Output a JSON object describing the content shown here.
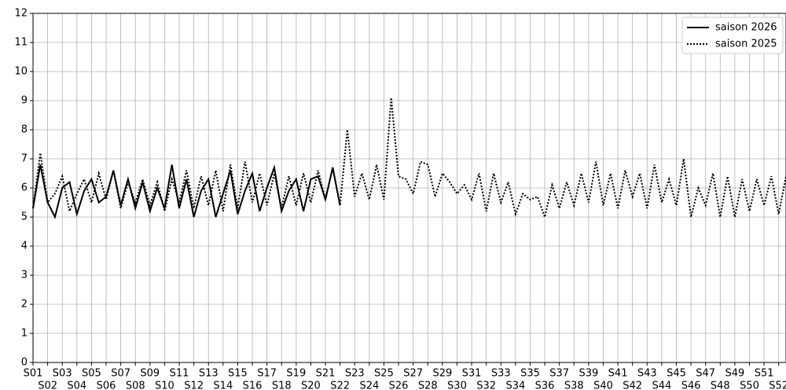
{
  "chart_data": {
    "type": "line",
    "xlim": [
      0,
      51.5
    ],
    "ylim": [
      0,
      12
    ],
    "yticks": [
      0,
      1,
      2,
      3,
      4,
      5,
      6,
      7,
      8,
      9,
      10,
      11,
      12
    ],
    "xticks": [
      {
        "value": 0,
        "label": "S01"
      },
      {
        "value": 1,
        "label": "S02"
      },
      {
        "value": 2,
        "label": "S03"
      },
      {
        "value": 3,
        "label": "S04"
      },
      {
        "value": 4,
        "label": "S05"
      },
      {
        "value": 5,
        "label": "S06"
      },
      {
        "value": 6,
        "label": "S07"
      },
      {
        "value": 7,
        "label": "S08"
      },
      {
        "value": 8,
        "label": "S09"
      },
      {
        "value": 9,
        "label": "S10"
      },
      {
        "value": 10,
        "label": "S11"
      },
      {
        "value": 11,
        "label": "S12"
      },
      {
        "value": 12,
        "label": "S13"
      },
      {
        "value": 13,
        "label": "S14"
      },
      {
        "value": 14,
        "label": "S15"
      },
      {
        "value": 15,
        "label": "S16"
      },
      {
        "value": 16,
        "label": "S17"
      },
      {
        "value": 17,
        "label": "S18"
      },
      {
        "value": 18,
        "label": "S19"
      },
      {
        "value": 19,
        "label": "S20"
      },
      {
        "value": 20,
        "label": "S21"
      },
      {
        "value": 21,
        "label": "S22"
      },
      {
        "value": 22,
        "label": "S23"
      },
      {
        "value": 23,
        "label": "S24"
      },
      {
        "value": 24,
        "label": "S25"
      },
      {
        "value": 25,
        "label": "S26"
      },
      {
        "value": 26,
        "label": "S27"
      },
      {
        "value": 27,
        "label": "S28"
      },
      {
        "value": 28,
        "label": "S29"
      },
      {
        "value": 29,
        "label": "S30"
      },
      {
        "value": 30,
        "label": "S31"
      },
      {
        "value": 31,
        "label": "S32"
      },
      {
        "value": 32,
        "label": "S33"
      },
      {
        "value": 33,
        "label": "S34"
      },
      {
        "value": 34,
        "label": "S35"
      },
      {
        "value": 35,
        "label": "S36"
      },
      {
        "value": 36,
        "label": "S37"
      },
      {
        "value": 37,
        "label": "S38"
      },
      {
        "value": 38,
        "label": "S39"
      },
      {
        "value": 39,
        "label": "S40"
      },
      {
        "value": 40,
        "label": "S41"
      },
      {
        "value": 41,
        "label": "S42"
      },
      {
        "value": 42,
        "label": "S43"
      },
      {
        "value": 43,
        "label": "S44"
      },
      {
        "value": 44,
        "label": "S45"
      },
      {
        "value": 45,
        "label": "S46"
      },
      {
        "value": 46,
        "label": "S47"
      },
      {
        "value": 47,
        "label": "S48"
      },
      {
        "value": 48,
        "label": "S49"
      },
      {
        "value": 49,
        "label": "S50"
      },
      {
        "value": 50,
        "label": "S51"
      },
      {
        "value": 51,
        "label": "S52"
      }
    ],
    "grid": true,
    "legend": "upper right",
    "series": [
      {
        "name": "saison 2026",
        "color": "#000000",
        "style": "solid",
        "x": [
          0,
          0.5,
          1,
          1.5,
          2,
          2.5,
          3,
          3.5,
          4,
          4.5,
          5,
          5.5,
          6,
          6.5,
          7,
          7.5,
          8,
          8.5,
          9,
          9.5,
          10,
          10.5,
          11,
          11.5,
          12,
          12.5,
          13,
          13.5,
          14,
          14.5,
          15,
          15.5,
          16,
          16.5,
          17,
          17.5,
          18,
          18.5,
          19,
          19.5,
          20,
          20.5,
          21
        ],
        "values": [
          5.3,
          6.8,
          5.5,
          5.0,
          6.0,
          6.2,
          5.1,
          5.9,
          6.3,
          5.5,
          5.7,
          6.6,
          5.4,
          6.3,
          5.3,
          6.2,
          5.2,
          6.0,
          5.3,
          6.8,
          5.3,
          6.3,
          5.0,
          5.9,
          6.3,
          5.0,
          5.8,
          6.6,
          5.1,
          5.9,
          6.5,
          5.2,
          6.0,
          6.7,
          5.2,
          5.9,
          6.3,
          5.2,
          6.3,
          6.4,
          5.6,
          6.7,
          5.4
        ]
      },
      {
        "name": "saison 2025",
        "color": "#000000",
        "style": "dotted",
        "x": [
          0,
          0.5,
          1,
          1.5,
          2,
          2.5,
          3,
          3.5,
          4,
          4.5,
          5,
          5.5,
          6,
          6.5,
          7,
          7.5,
          8,
          8.5,
          9,
          9.5,
          10,
          10.5,
          11,
          11.5,
          12,
          12.5,
          13,
          13.5,
          14,
          14.5,
          15,
          15.5,
          16,
          16.5,
          17,
          17.5,
          18,
          18.5,
          19,
          19.5,
          20,
          20.5,
          21,
          21.5,
          22,
          22.5,
          23,
          23.5,
          24,
          24.5,
          25,
          25.5,
          26,
          26.5,
          27,
          27.5,
          28,
          28.5,
          29,
          29.5,
          30,
          30.5,
          31,
          31.5,
          32,
          32.5,
          33,
          33.5,
          34,
          34.5,
          35,
          35.5,
          36,
          36.5,
          37,
          37.5,
          38,
          38.5,
          39,
          39.5,
          40,
          40.5,
          41,
          41.5,
          42,
          42.5,
          43,
          43.5,
          44,
          44.5,
          45,
          45.5,
          46,
          46.5,
          47,
          47.5,
          48,
          48.5,
          49,
          49.5,
          50,
          50.5,
          51,
          51.5
        ],
        "values": [
          5.3,
          7.2,
          5.5,
          5.8,
          6.4,
          5.2,
          5.8,
          6.3,
          5.5,
          6.5,
          5.6,
          6.6,
          5.3,
          6.2,
          5.5,
          6.3,
          5.4,
          6.2,
          5.2,
          6.3,
          5.5,
          6.6,
          5.3,
          6.4,
          5.4,
          6.6,
          5.2,
          6.8,
          5.3,
          6.9,
          5.5,
          6.5,
          5.4,
          6.5,
          5.3,
          6.4,
          5.4,
          6.5,
          5.5,
          6.6,
          5.6,
          6.7,
          5.4,
          8.0,
          5.7,
          6.5,
          5.6,
          6.8,
          5.6,
          9.1,
          6.4,
          6.3,
          5.8,
          6.9,
          6.8,
          5.7,
          6.5,
          6.2,
          5.8,
          6.1,
          5.6,
          6.5,
          5.2,
          6.5,
          5.5,
          6.2,
          5.1,
          5.8,
          5.6,
          5.7,
          5.0,
          6.1,
          5.3,
          6.2,
          5.4,
          6.5,
          5.5,
          6.9,
          5.4,
          6.5,
          5.3,
          6.6,
          5.7,
          6.5,
          5.3,
          6.8,
          5.5,
          6.3,
          5.4,
          7.0,
          5.0,
          6.0,
          5.4,
          6.5,
          5.0,
          6.4,
          5.0,
          6.3,
          5.2,
          6.3,
          5.4,
          6.4,
          5.1,
          6.4
        ]
      }
    ]
  }
}
